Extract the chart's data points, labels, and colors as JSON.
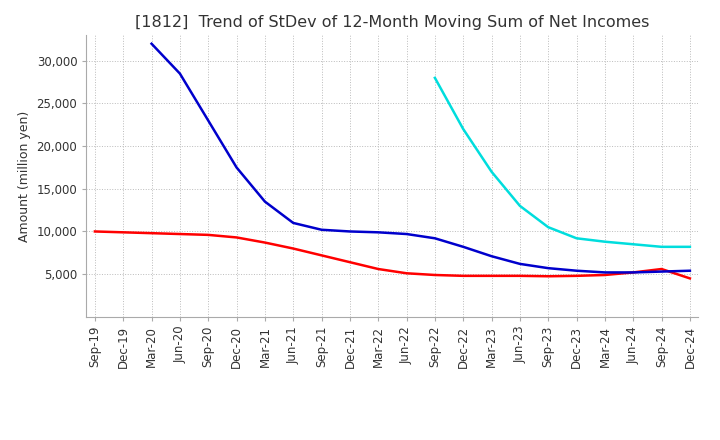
{
  "title": "[1812]  Trend of StDev of 12-Month Moving Sum of Net Incomes",
  "ylabel": "Amount (million yen)",
  "background_color": "#ffffff",
  "grid_color": "#bbbbbb",
  "title_fontsize": 11.5,
  "label_fontsize": 9,
  "tick_fontsize": 8.5,
  "ylim": [
    0,
    33000
  ],
  "yticks": [
    5000,
    10000,
    15000,
    20000,
    25000,
    30000
  ],
  "x_labels": [
    "Sep-19",
    "Dec-19",
    "Mar-20",
    "Jun-20",
    "Sep-20",
    "Dec-20",
    "Mar-21",
    "Jun-21",
    "Sep-21",
    "Dec-21",
    "Mar-22",
    "Jun-22",
    "Sep-22",
    "Dec-22",
    "Mar-23",
    "Jun-23",
    "Sep-23",
    "Dec-23",
    "Mar-24",
    "Jun-24",
    "Sep-24",
    "Dec-24"
  ],
  "series": {
    "3 Years": {
      "color": "#ff0000",
      "data": [
        10000,
        9900,
        9800,
        9700,
        9600,
        9300,
        8700,
        8000,
        7200,
        6400,
        5600,
        5100,
        4900,
        4800,
        4800,
        4800,
        4750,
        4800,
        4900,
        5200,
        5600,
        4500
      ]
    },
    "5 Years": {
      "color": "#0000cc",
      "data": [
        null,
        null,
        32000,
        28500,
        23000,
        17500,
        13500,
        11000,
        10200,
        10000,
        9900,
        9700,
        9200,
        8200,
        7100,
        6200,
        5700,
        5400,
        5200,
        5200,
        5300,
        5400
      ]
    },
    "7 Years": {
      "color": "#00dddd",
      "data": [
        null,
        null,
        null,
        null,
        null,
        null,
        null,
        null,
        null,
        null,
        null,
        null,
        28000,
        22000,
        17000,
        13000,
        10500,
        9200,
        8800,
        8500,
        8200,
        8200
      ]
    },
    "10 Years": {
      "color": "#008000",
      "data": [
        null,
        null,
        null,
        null,
        null,
        null,
        null,
        null,
        null,
        null,
        null,
        null,
        null,
        null,
        null,
        null,
        null,
        null,
        null,
        null,
        null,
        null
      ]
    }
  }
}
